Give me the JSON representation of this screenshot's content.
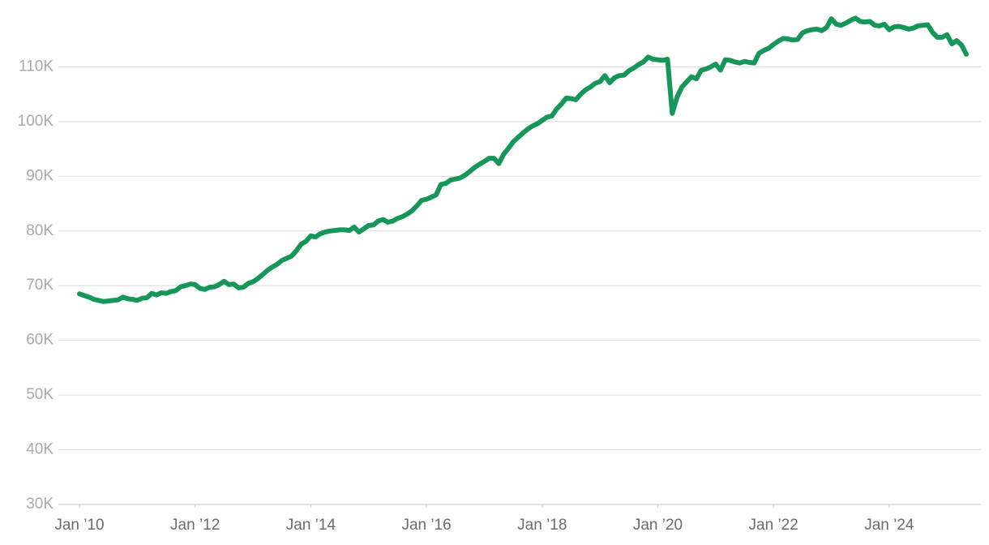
{
  "chart_data": {
    "type": "line",
    "color": "#17965a",
    "grid": true,
    "x": [
      "2010-01",
      "2010-02",
      "2010-03",
      "2010-04",
      "2010-05",
      "2010-06",
      "2010-07",
      "2010-08",
      "2010-09",
      "2010-10",
      "2010-11",
      "2010-12",
      "2011-01",
      "2011-02",
      "2011-03",
      "2011-04",
      "2011-05",
      "2011-06",
      "2011-07",
      "2011-08",
      "2011-09",
      "2011-10",
      "2011-11",
      "2011-12",
      "2012-01",
      "2012-02",
      "2012-03",
      "2012-04",
      "2012-05",
      "2012-06",
      "2012-07",
      "2012-08",
      "2012-09",
      "2012-10",
      "2012-11",
      "2012-12",
      "2013-01",
      "2013-02",
      "2013-03",
      "2013-04",
      "2013-05",
      "2013-06",
      "2013-07",
      "2013-08",
      "2013-09",
      "2013-10",
      "2013-11",
      "2013-12",
      "2014-01",
      "2014-02",
      "2014-03",
      "2014-04",
      "2014-05",
      "2014-06",
      "2014-07",
      "2014-08",
      "2014-09",
      "2014-10",
      "2014-11",
      "2014-12",
      "2015-01",
      "2015-02",
      "2015-03",
      "2015-04",
      "2015-05",
      "2015-06",
      "2015-07",
      "2015-08",
      "2015-09",
      "2015-10",
      "2015-11",
      "2015-12",
      "2016-01",
      "2016-02",
      "2016-03",
      "2016-04",
      "2016-05",
      "2016-06",
      "2016-07",
      "2016-08",
      "2016-09",
      "2016-10",
      "2016-11",
      "2016-12",
      "2017-01",
      "2017-02",
      "2017-03",
      "2017-04",
      "2017-05",
      "2017-06",
      "2017-07",
      "2017-08",
      "2017-09",
      "2017-10",
      "2017-11",
      "2017-12",
      "2018-01",
      "2018-02",
      "2018-03",
      "2018-04",
      "2018-05",
      "2018-06",
      "2018-07",
      "2018-08",
      "2018-09",
      "2018-10",
      "2018-11",
      "2018-12",
      "2019-01",
      "2019-02",
      "2019-03",
      "2019-04",
      "2019-05",
      "2019-06",
      "2019-07",
      "2019-08",
      "2019-09",
      "2019-10",
      "2019-11",
      "2019-12",
      "2020-01",
      "2020-02",
      "2020-03",
      "2020-04",
      "2020-05",
      "2020-06",
      "2020-07",
      "2020-08",
      "2020-09",
      "2020-10",
      "2020-11",
      "2020-12",
      "2021-01",
      "2021-02",
      "2021-03",
      "2021-04",
      "2021-05",
      "2021-06",
      "2021-07",
      "2021-08",
      "2021-09",
      "2021-10",
      "2021-11",
      "2021-12",
      "2022-01",
      "2022-02",
      "2022-03",
      "2022-04",
      "2022-05",
      "2022-06",
      "2022-07",
      "2022-08",
      "2022-09",
      "2022-10",
      "2022-11",
      "2022-12",
      "2023-01",
      "2023-02",
      "2023-03",
      "2023-04",
      "2023-05",
      "2023-06",
      "2023-07",
      "2023-08",
      "2023-09",
      "2023-10",
      "2023-11",
      "2023-12",
      "2024-01",
      "2024-02",
      "2024-03",
      "2024-04",
      "2024-05",
      "2024-06",
      "2024-07",
      "2024-08",
      "2024-09",
      "2024-10",
      "2024-11",
      "2024-12",
      "2025-01",
      "2025-02",
      "2025-03",
      "2025-04",
      "2025-05"
    ],
    "values": [
      68500,
      68200,
      67900,
      67500,
      67300,
      67100,
      67200,
      67300,
      67400,
      67900,
      67600,
      67500,
      67300,
      67700,
      67800,
      68600,
      68300,
      68700,
      68600,
      68900,
      69100,
      69800,
      70000,
      70300,
      70200,
      69500,
      69300,
      69700,
      69800,
      70200,
      70800,
      70200,
      70300,
      69600,
      69700,
      70400,
      70700,
      71300,
      72000,
      72800,
      73400,
      73900,
      74600,
      75000,
      75400,
      76400,
      77600,
      78100,
      79100,
      78900,
      79500,
      79800,
      80000,
      80100,
      80200,
      80200,
      80100,
      80700,
      79800,
      80400,
      81000,
      81100,
      81800,
      82100,
      81600,
      81800,
      82300,
      82600,
      83100,
      83700,
      84600,
      85600,
      85800,
      86200,
      86600,
      88500,
      88700,
      89300,
      89500,
      89700,
      90200,
      90900,
      91600,
      92200,
      92700,
      93300,
      93300,
      92300,
      94000,
      95100,
      96300,
      97100,
      97900,
      98600,
      99200,
      99600,
      100200,
      100800,
      101000,
      102300,
      103200,
      104300,
      104200,
      104000,
      105000,
      105800,
      106300,
      107000,
      107300,
      108400,
      107100,
      108000,
      108400,
      108500,
      109300,
      109800,
      110400,
      110900,
      111800,
      111400,
      111300,
      111200,
      111400,
      101500,
      104500,
      106300,
      107300,
      108200,
      107800,
      109400,
      109600,
      110000,
      110500,
      109400,
      111300,
      111200,
      110900,
      110700,
      111000,
      110800,
      110700,
      112500,
      113000,
      113400,
      114100,
      114700,
      115200,
      115100,
      114900,
      115000,
      116200,
      116600,
      116800,
      116900,
      116600,
      117200,
      118800,
      117800,
      117600,
      118000,
      118500,
      118900,
      118300,
      118200,
      118300,
      117600,
      117500,
      117800,
      116800,
      117300,
      117400,
      117200,
      116900,
      117100,
      117500,
      117600,
      117700,
      116300,
      115400,
      115400,
      115900,
      114200,
      114800,
      114000,
      112300
    ],
    "xlim": [
      "2010-01",
      "2025-05"
    ],
    "xticks": [
      {
        "value": "2010-01",
        "label": "Jan ’10"
      },
      {
        "value": "2012-01",
        "label": "Jan ’12"
      },
      {
        "value": "2014-01",
        "label": "Jan ’14"
      },
      {
        "value": "2016-01",
        "label": "Jan ’16"
      },
      {
        "value": "2018-01",
        "label": "Jan ’18"
      },
      {
        "value": "2020-01",
        "label": "Jan ’20"
      },
      {
        "value": "2022-01",
        "label": "Jan ’22"
      },
      {
        "value": "2024-01",
        "label": "Jan ’24"
      }
    ],
    "ylim": [
      30000,
      120000
    ],
    "yticks": [
      {
        "value": 30000,
        "label": "30K"
      },
      {
        "value": 40000,
        "label": "40K"
      },
      {
        "value": 50000,
        "label": "50K"
      },
      {
        "value": 60000,
        "label": "60K"
      },
      {
        "value": 70000,
        "label": "70K"
      },
      {
        "value": 80000,
        "label": "80K"
      },
      {
        "value": 90000,
        "label": "90K"
      },
      {
        "value": 100000,
        "label": "100K"
      },
      {
        "value": 110000,
        "label": "110K"
      }
    ]
  }
}
